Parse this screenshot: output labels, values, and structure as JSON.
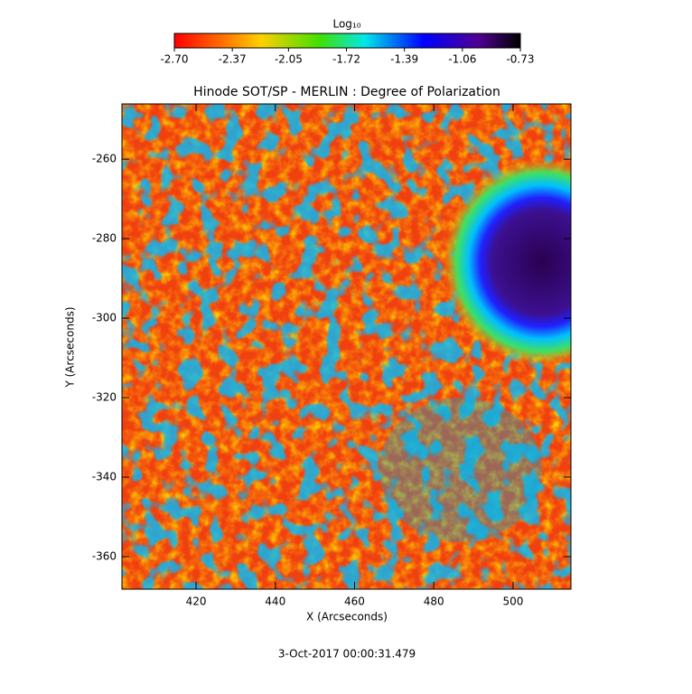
{
  "chart_data": {
    "type": "image",
    "title": "Hinode SOT/SP - MERLIN : Degree of Polarization",
    "xlabel": "X (Arcseconds)",
    "ylabel": "Y (Arcseconds)",
    "xlim": [
      401.3,
      514.6
    ],
    "xticks": [
      420,
      440,
      460,
      480,
      500
    ],
    "ylim": [
      -368.2,
      -246.1
    ],
    "yticks": [
      -360,
      -340,
      -320,
      -300,
      -280,
      -260
    ],
    "colorbar": {
      "label": "Log₁₀",
      "lim": [
        -2.7,
        -0.73
      ],
      "ticks": [
        {
          "value": -2.7,
          "label": "-2.70"
        },
        {
          "value": -2.37,
          "label": "-2.37"
        },
        {
          "value": -2.05,
          "label": "-2.05"
        },
        {
          "value": -1.72,
          "label": "-1.72"
        },
        {
          "value": -1.39,
          "label": "-1.39"
        },
        {
          "value": -1.06,
          "label": "-1.06"
        },
        {
          "value": -0.73,
          "label": "-0.73"
        }
      ]
    },
    "annotation": "3-Oct-2017 00:00:31.479"
  }
}
